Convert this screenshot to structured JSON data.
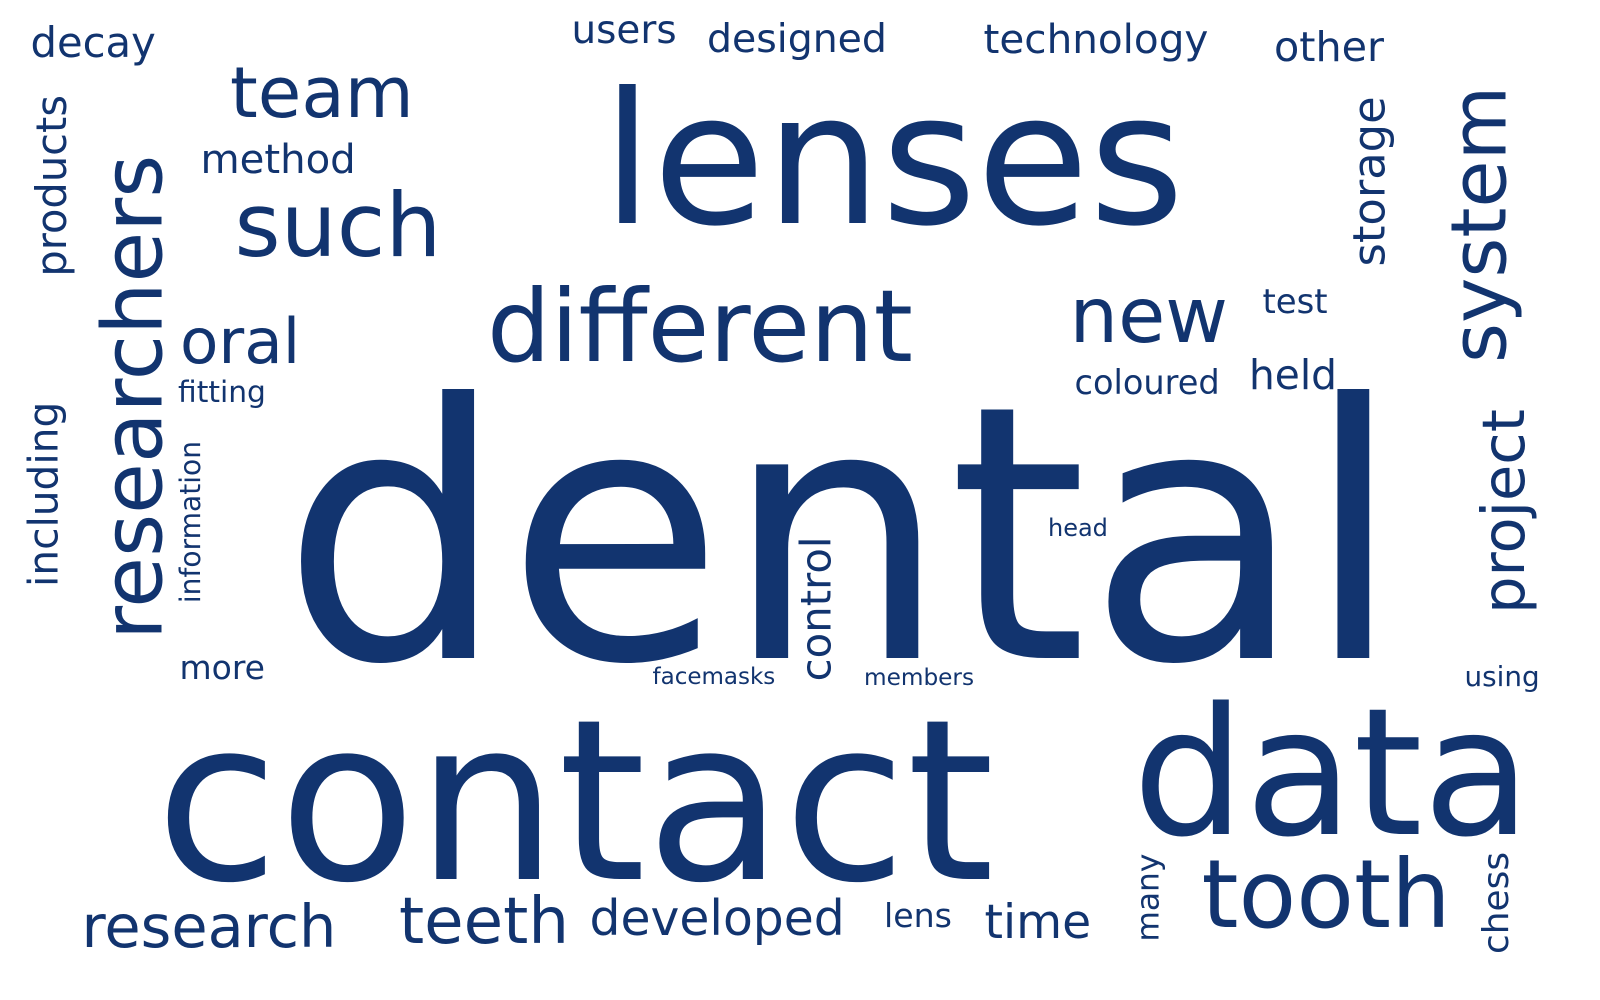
{
  "cloud": {
    "color": "#12346f",
    "background": "#ffffff",
    "words": [
      "dental",
      "lenses",
      "contact",
      "data",
      "researchers",
      "different",
      "tooth",
      "system",
      "team",
      "such",
      "new",
      "research",
      "teeth",
      "developed",
      "project",
      "oral",
      "decay",
      "users",
      "designed",
      "technology",
      "other",
      "method",
      "products",
      "storage",
      "test",
      "held",
      "coloured",
      "including",
      "information",
      "fitting",
      "more",
      "control",
      "head",
      "facemasks",
      "members",
      "using",
      "lens",
      "time",
      "many",
      "chess"
    ]
  }
}
